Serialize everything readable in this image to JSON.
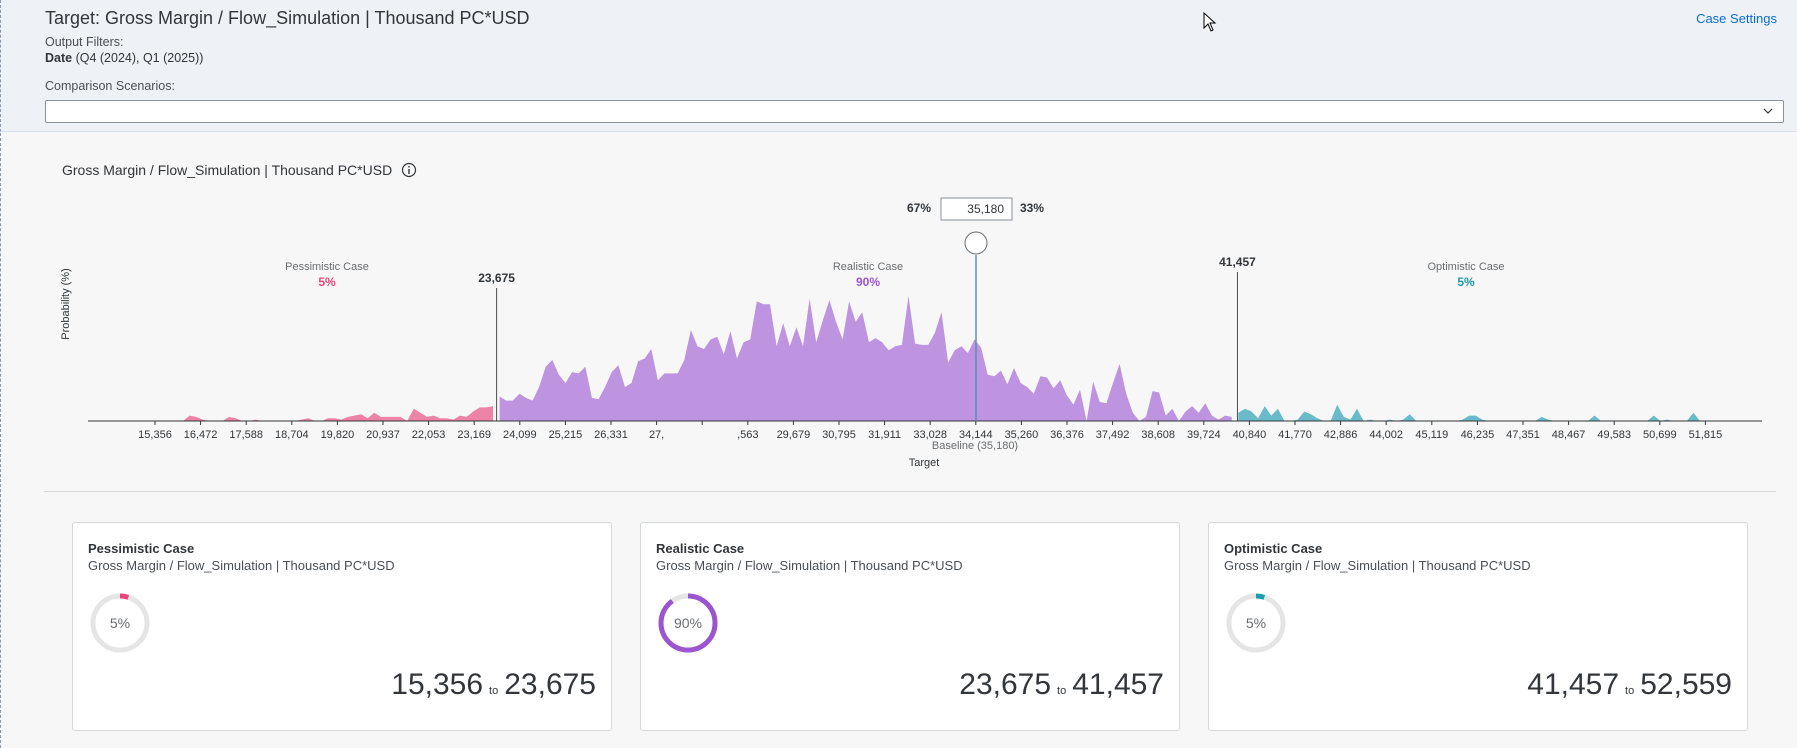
{
  "header": {
    "title": "Target: Gross Margin / Flow_Simulation | Thousand PC*USD",
    "case_settings": "Case Settings",
    "output_filters_label": "Output Filters:",
    "filter_name": "Date",
    "filter_values": " (Q4 (2024), Q1 (2025))",
    "comparison_label": "Comparison Scenarios:",
    "comparison_value": ""
  },
  "chart_title": "Gross Margin / Flow_Simulation | Thousand PC*USD",
  "chart_data": {
    "type": "area",
    "ylabel": "Probability (%)",
    "xlabel": "Target",
    "x_ticks": [
      "15,356",
      "16,472",
      "17,588",
      "18,704",
      "19,820",
      "20,937",
      "22,053",
      "23,169",
      "24,099",
      "25,215",
      "26,331",
      "27,",
      "",
      ",563",
      "29,679",
      "30,795",
      "31,911",
      "33,028",
      "34,144",
      "35,260",
      "36,376",
      "37,492",
      "38,608",
      "39,724",
      "40,840",
      "41,770",
      "42,886",
      "44,002",
      "45,119",
      "46,235",
      "47,351",
      "48,467",
      "49,583",
      "50,699",
      "51,815"
    ],
    "x_range": [
      15356,
      52559
    ],
    "baseline_label": "Baseline (35,180)",
    "baseline_value": 35180,
    "left_percent": "67%",
    "right_percent": "33%",
    "slider_value": "35,180",
    "lower_threshold": 23675,
    "lower_threshold_label": "23,675",
    "upper_threshold": 41457,
    "upper_threshold_label": "41,457",
    "cases": [
      {
        "name": "Pessimistic Case",
        "percent": "5%",
        "color": "#e8457c"
      },
      {
        "name": "Realistic Case",
        "percent": "90%",
        "color": "#9b55d1"
      },
      {
        "name": "Optimistic Case",
        "percent": "5%",
        "color": "#1d9bb0"
      }
    ],
    "distribution": [
      0,
      0,
      0,
      0,
      0,
      0,
      4,
      3,
      1,
      0,
      0,
      0,
      3,
      2,
      0,
      0,
      1,
      0,
      0,
      0,
      0,
      0,
      0,
      1,
      2,
      0,
      0,
      2,
      2,
      1,
      3,
      4,
      5,
      2,
      6,
      3,
      3,
      3,
      3,
      0,
      9,
      6,
      3,
      4,
      2,
      2,
      1,
      4,
      3,
      7,
      10,
      10,
      11,
      18,
      15,
      15,
      20,
      17,
      15,
      25,
      40,
      45,
      34,
      28,
      36,
      35,
      40,
      17,
      16,
      25,
      36,
      41,
      25,
      28,
      44,
      46,
      53,
      30,
      35,
      35,
      35,
      45,
      67,
      55,
      53,
      60,
      62,
      49,
      66,
      46,
      58,
      60,
      88,
      86,
      86,
      55,
      72,
      55,
      69,
      55,
      90,
      58,
      74,
      89,
      73,
      60,
      88,
      73,
      80,
      58,
      61,
      58,
      52,
      55,
      56,
      92,
      57,
      56,
      56,
      65,
      80,
      43,
      52,
      55,
      50,
      60,
      54,
      34,
      33,
      37,
      27,
      39,
      28,
      25,
      20,
      33,
      32,
      24,
      30,
      19,
      12,
      23,
      0,
      29,
      14,
      13,
      28,
      42,
      20,
      6,
      0,
      3,
      22,
      21,
      4,
      9,
      0,
      7,
      11,
      6,
      13,
      4,
      1,
      4,
      3,
      6,
      9,
      7,
      2,
      11,
      4,
      9,
      0,
      0,
      1,
      7,
      5,
      2,
      0,
      0,
      12,
      3,
      1,
      9,
      0,
      1,
      0,
      0,
      1,
      0,
      1,
      5,
      0,
      0,
      0,
      0,
      0,
      0,
      0,
      1,
      4,
      4,
      1,
      0,
      0,
      0,
      0,
      0,
      0,
      0,
      0,
      3,
      1,
      0,
      0,
      0,
      0,
      0,
      0,
      4,
      0,
      0,
      0,
      0,
      0,
      0,
      0,
      0,
      4,
      0,
      1,
      0,
      0,
      0,
      6,
      0
    ]
  },
  "cards": [
    {
      "title": "Pessimistic Case",
      "subtitle": "Gross Margin / Flow_Simulation | Thousand PC*USD",
      "percent": "5%",
      "fraction": 0.05,
      "color": "#e8457c",
      "from": "15,356",
      "to_word": "to",
      "to": "23,675"
    },
    {
      "title": "Realistic Case",
      "subtitle": "Gross Margin / Flow_Simulation | Thousand PC*USD",
      "percent": "90%",
      "fraction": 0.9,
      "color": "#9b55d1",
      "from": "23,675",
      "to_word": "to",
      "to": "41,457"
    },
    {
      "title": "Optimistic Case",
      "subtitle": "Gross Margin / Flow_Simulation | Thousand PC*USD",
      "percent": "5%",
      "fraction": 0.05,
      "color": "#1d9bb0",
      "from": "41,457",
      "to_word": "to",
      "to": "52,559"
    }
  ]
}
